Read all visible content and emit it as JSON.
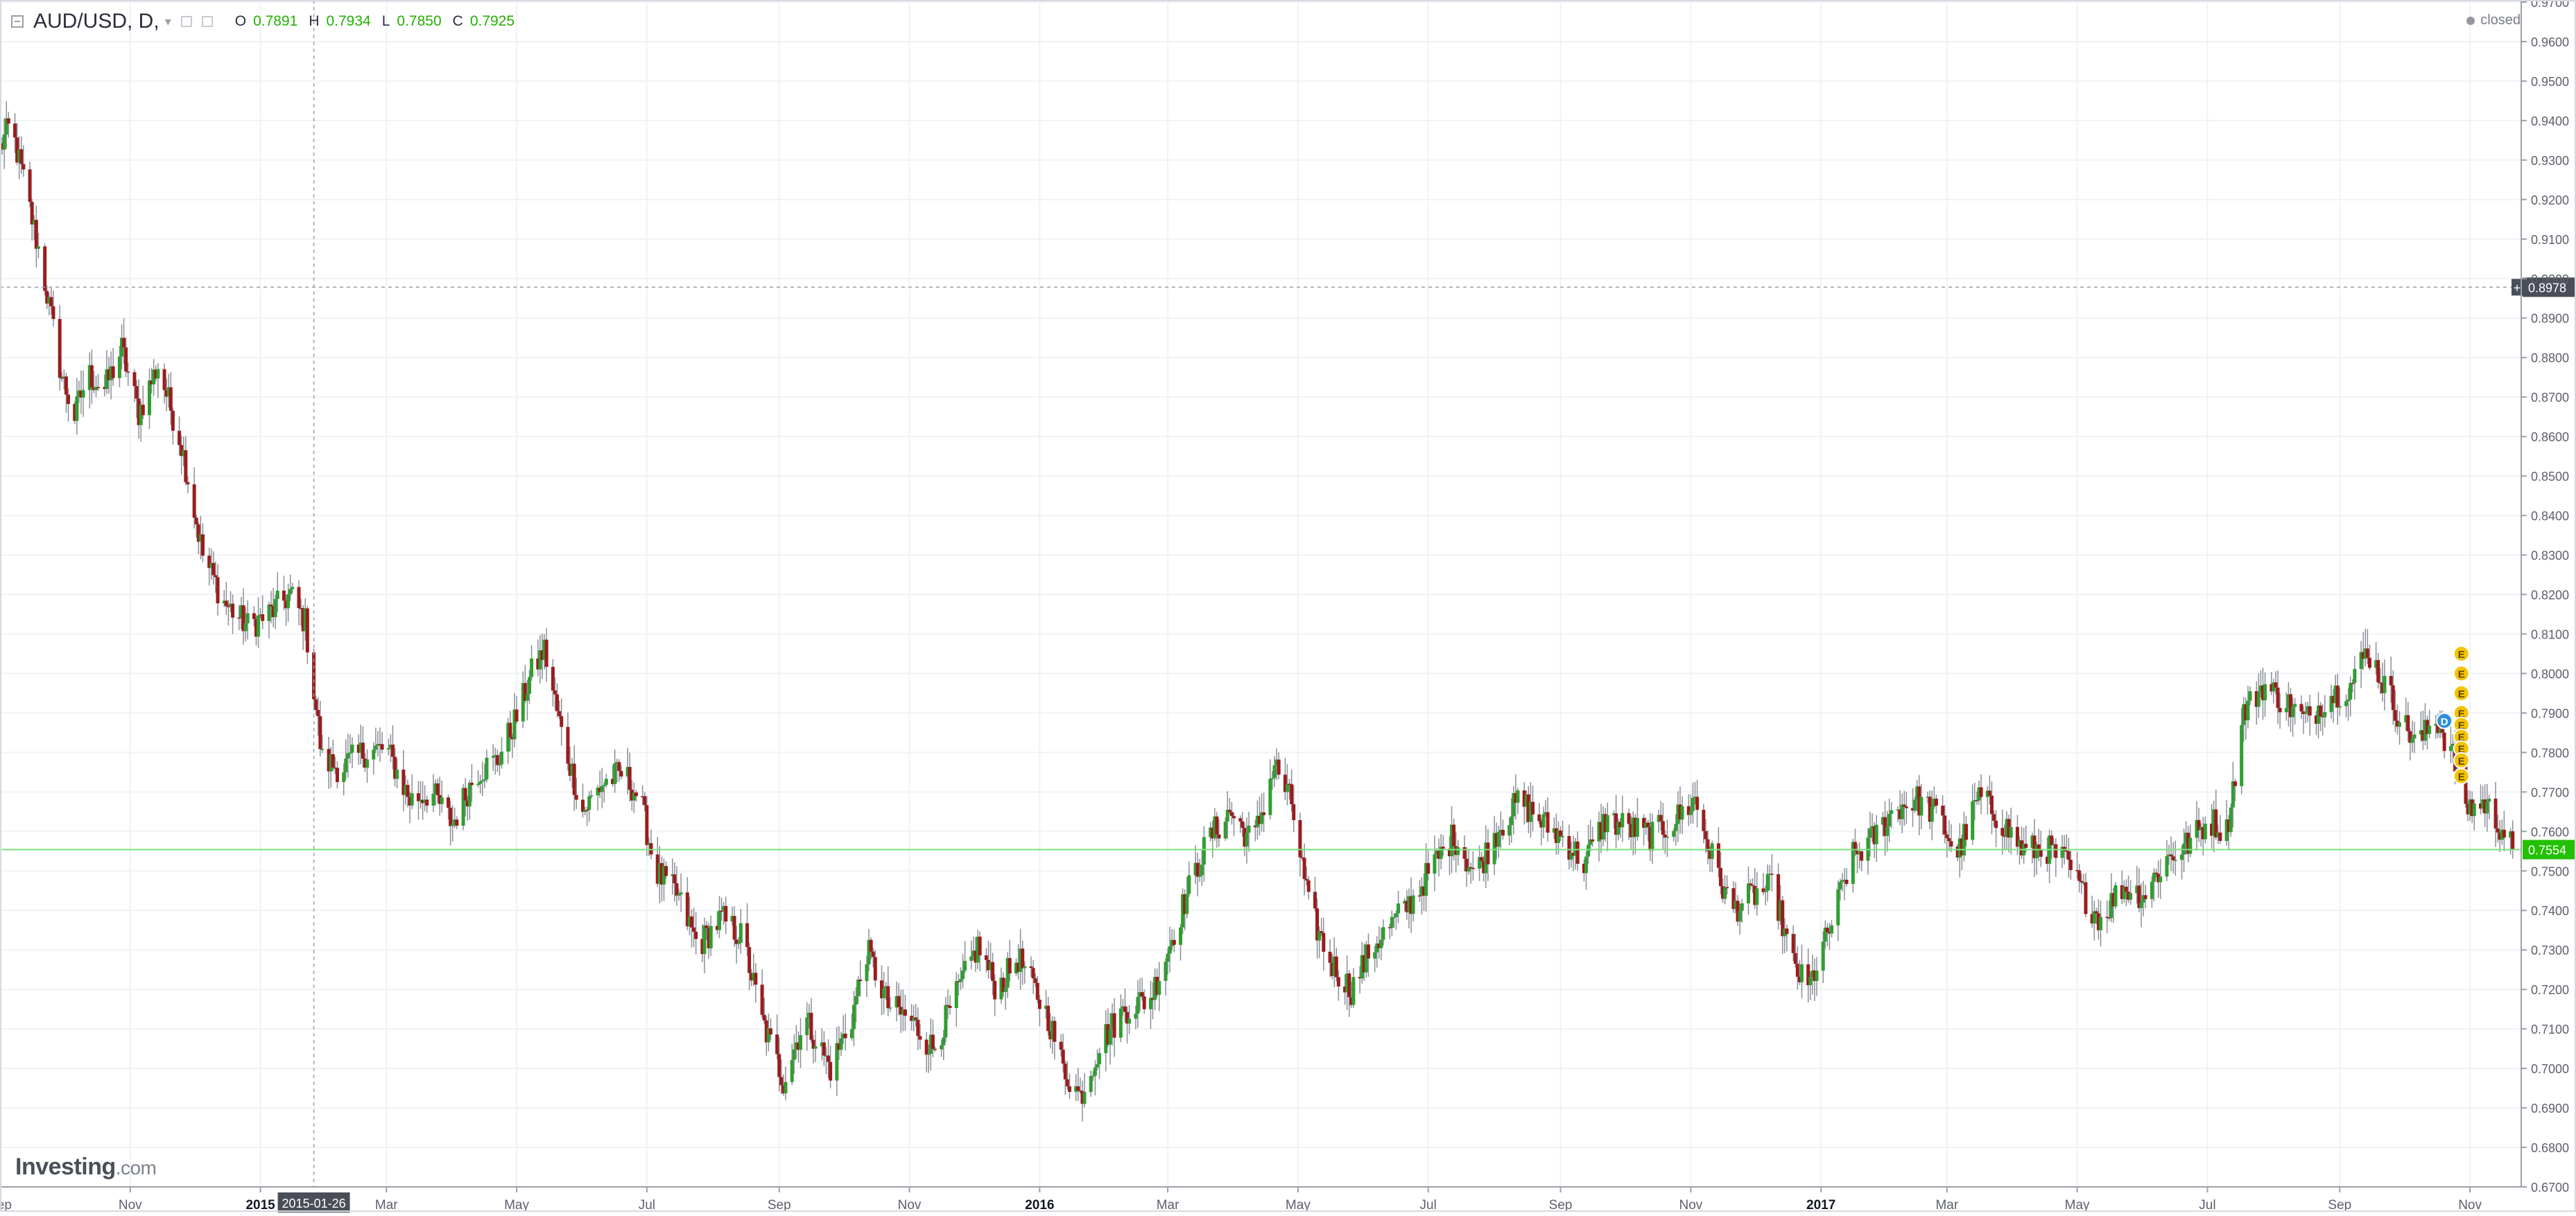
{
  "header": {
    "symbol": "AUD/USD, D,",
    "ohlc": [
      {
        "key": "O",
        "value": "0.7891"
      },
      {
        "key": "H",
        "value": "0.7934"
      },
      {
        "key": "L",
        "value": "0.7850"
      },
      {
        "key": "C",
        "value": "0.7925"
      }
    ],
    "status": "closed",
    "colors": {
      "value": "#22b000",
      "status_dot": "#9598a1"
    }
  },
  "logo": {
    "main": "Investing",
    "suffix": ".com"
  },
  "chart_data": {
    "type": "candlestick",
    "symbol": "AUD/USD",
    "timeframe": "D",
    "y_range": [
      0.67,
      0.97
    ],
    "y_ticks": [
      "0.6700",
      "0.6800",
      "0.6900",
      "0.7000",
      "0.7100",
      "0.7200",
      "0.7300",
      "0.7400",
      "0.7500",
      "0.7600",
      "0.7700",
      "0.7800",
      "0.7900",
      "0.8000",
      "0.8100",
      "0.8200",
      "0.8300",
      "0.8400",
      "0.8500",
      "0.8600",
      "0.8700",
      "0.8800",
      "0.8900",
      "0.9000",
      "0.9100",
      "0.9200",
      "0.9300",
      "0.9400",
      "0.9500",
      "0.9600",
      "0.9700"
    ],
    "x_range": [
      "2014-09-01",
      "2017-11-25"
    ],
    "x_ticks": [
      {
        "label": "Sep",
        "date": "2014-09-01",
        "bold": false
      },
      {
        "label": "Nov",
        "date": "2014-11-01",
        "bold": false
      },
      {
        "label": "2015",
        "date": "2015-01-01",
        "bold": true
      },
      {
        "label": "Mar",
        "date": "2015-03-01",
        "bold": false
      },
      {
        "label": "May",
        "date": "2015-05-01",
        "bold": false
      },
      {
        "label": "Jul",
        "date": "2015-07-01",
        "bold": false
      },
      {
        "label": "Sep",
        "date": "2015-09-01",
        "bold": false
      },
      {
        "label": "Nov",
        "date": "2015-11-01",
        "bold": false
      },
      {
        "label": "2016",
        "date": "2016-01-01",
        "bold": true
      },
      {
        "label": "Mar",
        "date": "2016-03-01",
        "bold": false
      },
      {
        "label": "May",
        "date": "2016-05-01",
        "bold": false
      },
      {
        "label": "Jul",
        "date": "2016-07-01",
        "bold": false
      },
      {
        "label": "Sep",
        "date": "2016-09-01",
        "bold": false
      },
      {
        "label": "Nov",
        "date": "2016-11-01",
        "bold": false
      },
      {
        "label": "2017",
        "date": "2017-01-01",
        "bold": true
      },
      {
        "label": "Mar",
        "date": "2017-03-01",
        "bold": false
      },
      {
        "label": "May",
        "date": "2017-05-01",
        "bold": false
      },
      {
        "label": "Jul",
        "date": "2017-07-01",
        "bold": false
      },
      {
        "label": "Sep",
        "date": "2017-09-01",
        "bold": false
      },
      {
        "label": "Nov",
        "date": "2017-11-01",
        "bold": false
      }
    ],
    "crosshair": {
      "date": "2015-01-26",
      "price": 0.8978,
      "date_label": "2015-01-26",
      "price_label": "0.8978"
    },
    "last_price": {
      "value": 0.7554,
      "label": "0.7554"
    },
    "grid": true,
    "colors": {
      "up": "#2f9e2f",
      "down": "#9b1c1c",
      "wick": "#8a8f96",
      "last_price": "#22c000",
      "last_line": "#7be27b",
      "crosshair": "#9aa0a8",
      "event_marker": "#f5c400",
      "dividend_marker": "#2d8fe0"
    },
    "events": [
      {
        "date": "2017-10-20",
        "price": 0.788,
        "label": "D",
        "kind": "dividend"
      },
      {
        "date": "2017-10-28",
        "price": 0.805,
        "label": "E",
        "kind": "earnings"
      },
      {
        "date": "2017-10-28",
        "price": 0.8,
        "label": "E",
        "kind": "earnings"
      },
      {
        "date": "2017-10-28",
        "price": 0.795,
        "label": "E",
        "kind": "earnings"
      },
      {
        "date": "2017-10-28",
        "price": 0.79,
        "label": "E",
        "kind": "earnings"
      },
      {
        "date": "2017-10-28",
        "price": 0.787,
        "label": "E",
        "kind": "earnings"
      },
      {
        "date": "2017-10-28",
        "price": 0.784,
        "label": "E",
        "kind": "earnings"
      },
      {
        "date": "2017-10-28",
        "price": 0.781,
        "label": "E",
        "kind": "earnings"
      },
      {
        "date": "2017-10-28",
        "price": 0.778,
        "label": "E",
        "kind": "earnings"
      },
      {
        "date": "2017-10-28",
        "price": 0.774,
        "label": "E",
        "kind": "earnings"
      }
    ],
    "path": [
      [
        "2014-09-01",
        0.933
      ],
      [
        "2014-09-06",
        0.939
      ],
      [
        "2014-09-12",
        0.925
      ],
      [
        "2014-09-20",
        0.905
      ],
      [
        "2014-09-30",
        0.875
      ],
      [
        "2014-10-06",
        0.865
      ],
      [
        "2014-10-12",
        0.876
      ],
      [
        "2014-10-20",
        0.872
      ],
      [
        "2014-10-28",
        0.882
      ],
      [
        "2014-11-05",
        0.866
      ],
      [
        "2014-11-14",
        0.878
      ],
      [
        "2014-11-25",
        0.858
      ],
      [
        "2014-12-05",
        0.83
      ],
      [
        "2014-12-15",
        0.818
      ],
      [
        "2014-12-26",
        0.812
      ],
      [
        "2015-01-05",
        0.815
      ],
      [
        "2015-01-15",
        0.82
      ],
      [
        "2015-01-22",
        0.813
      ],
      [
        "2015-01-30",
        0.778
      ],
      [
        "2015-02-08",
        0.776
      ],
      [
        "2015-02-18",
        0.78
      ],
      [
        "2015-03-01",
        0.781
      ],
      [
        "2015-03-12",
        0.768
      ],
      [
        "2015-03-22",
        0.77
      ],
      [
        "2015-04-01",
        0.762
      ],
      [
        "2015-04-12",
        0.775
      ],
      [
        "2015-04-22",
        0.778
      ],
      [
        "2015-05-01",
        0.789
      ],
      [
        "2015-05-08",
        0.8
      ],
      [
        "2015-05-14",
        0.806
      ],
      [
        "2015-05-22",
        0.785
      ],
      [
        "2015-06-01",
        0.765
      ],
      [
        "2015-06-10",
        0.772
      ],
      [
        "2015-06-20",
        0.775
      ],
      [
        "2015-06-28",
        0.768
      ],
      [
        "2015-07-05",
        0.75
      ],
      [
        "2015-07-15",
        0.744
      ],
      [
        "2015-07-25",
        0.731
      ],
      [
        "2015-08-05",
        0.738
      ],
      [
        "2015-08-15",
        0.733
      ],
      [
        "2015-08-24",
        0.712
      ],
      [
        "2015-09-03",
        0.697
      ],
      [
        "2015-09-13",
        0.713
      ],
      [
        "2015-09-25",
        0.7
      ],
      [
        "2015-10-05",
        0.713
      ],
      [
        "2015-10-12",
        0.73
      ],
      [
        "2015-10-22",
        0.716
      ],
      [
        "2015-11-02",
        0.712
      ],
      [
        "2015-11-12",
        0.705
      ],
      [
        "2015-11-22",
        0.717
      ],
      [
        "2015-12-03",
        0.731
      ],
      [
        "2015-12-12",
        0.72
      ],
      [
        "2015-12-22",
        0.728
      ],
      [
        "2016-01-05",
        0.713
      ],
      [
        "2016-01-12",
        0.7
      ],
      [
        "2016-01-20",
        0.693
      ],
      [
        "2016-01-30",
        0.707
      ],
      [
        "2016-02-10",
        0.715
      ],
      [
        "2016-02-22",
        0.718
      ],
      [
        "2016-03-01",
        0.73
      ],
      [
        "2016-03-10",
        0.744
      ],
      [
        "2016-03-20",
        0.758
      ],
      [
        "2016-03-30",
        0.765
      ],
      [
        "2016-04-10",
        0.757
      ],
      [
        "2016-04-20",
        0.777
      ],
      [
        "2016-04-28",
        0.767
      ],
      [
        "2016-05-06",
        0.741
      ],
      [
        "2016-05-16",
        0.727
      ],
      [
        "2016-05-26",
        0.72
      ],
      [
        "2016-06-05",
        0.731
      ],
      [
        "2016-06-15",
        0.737
      ],
      [
        "2016-06-24",
        0.743
      ],
      [
        "2016-07-03",
        0.751
      ],
      [
        "2016-07-13",
        0.759
      ],
      [
        "2016-07-23",
        0.749
      ],
      [
        "2016-08-03",
        0.761
      ],
      [
        "2016-08-13",
        0.768
      ],
      [
        "2016-08-24",
        0.762
      ],
      [
        "2016-09-03",
        0.758
      ],
      [
        "2016-09-12",
        0.752
      ],
      [
        "2016-09-22",
        0.763
      ],
      [
        "2016-10-03",
        0.761
      ],
      [
        "2016-10-13",
        0.759
      ],
      [
        "2016-10-23",
        0.762
      ],
      [
        "2016-11-03",
        0.768
      ],
      [
        "2016-11-10",
        0.755
      ],
      [
        "2016-11-20",
        0.74
      ],
      [
        "2016-12-01",
        0.744
      ],
      [
        "2016-12-10",
        0.746
      ],
      [
        "2016-12-18",
        0.727
      ],
      [
        "2016-12-26",
        0.72
      ],
      [
        "2017-01-05",
        0.735
      ],
      [
        "2017-01-15",
        0.753
      ],
      [
        "2017-01-25",
        0.758
      ],
      [
        "2017-02-05",
        0.766
      ],
      [
        "2017-02-15",
        0.768
      ],
      [
        "2017-02-25",
        0.764
      ],
      [
        "2017-03-06",
        0.754
      ],
      [
        "2017-03-16",
        0.769
      ],
      [
        "2017-03-26",
        0.763
      ],
      [
        "2017-04-06",
        0.755
      ],
      [
        "2017-04-16",
        0.756
      ],
      [
        "2017-04-26",
        0.752
      ],
      [
        "2017-05-06",
        0.742
      ],
      [
        "2017-05-12",
        0.738
      ],
      [
        "2017-05-22",
        0.746
      ],
      [
        "2017-06-01",
        0.744
      ],
      [
        "2017-06-12",
        0.753
      ],
      [
        "2017-06-22",
        0.757
      ],
      [
        "2017-07-02",
        0.763
      ],
      [
        "2017-07-10",
        0.76
      ],
      [
        "2017-07-18",
        0.79
      ],
      [
        "2017-07-27",
        0.797
      ],
      [
        "2017-08-06",
        0.793
      ],
      [
        "2017-08-16",
        0.788
      ],
      [
        "2017-08-26",
        0.794
      ],
      [
        "2017-09-06",
        0.797
      ],
      [
        "2017-09-14",
        0.806
      ],
      [
        "2017-09-22",
        0.797
      ],
      [
        "2017-10-01",
        0.787
      ],
      [
        "2017-10-08",
        0.782
      ],
      [
        "2017-10-16",
        0.789
      ],
      [
        "2017-10-24",
        0.779
      ],
      [
        "2017-10-31",
        0.766
      ],
      [
        "2017-11-08",
        0.767
      ],
      [
        "2017-11-17",
        0.76
      ],
      [
        "2017-11-21",
        0.7554
      ]
    ]
  }
}
